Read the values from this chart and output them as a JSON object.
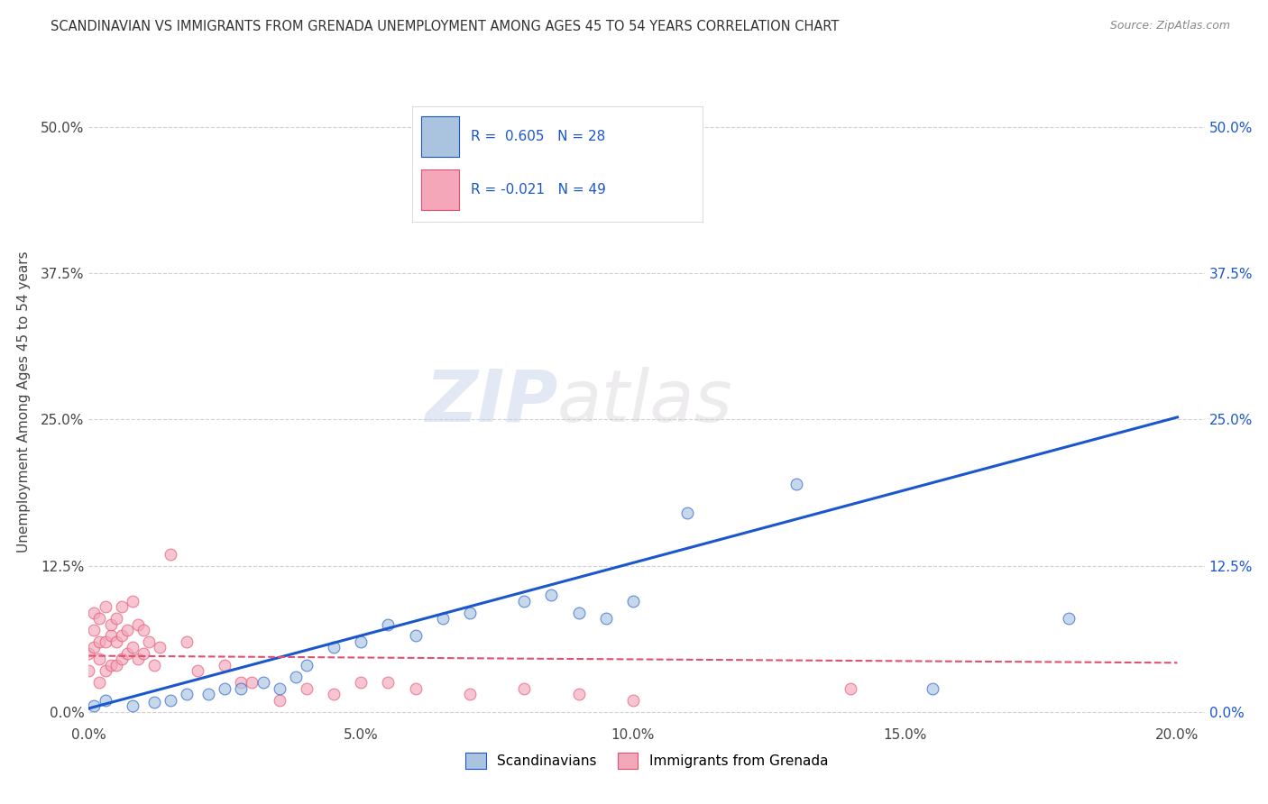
{
  "title": "SCANDINAVIAN VS IMMIGRANTS FROM GRENADA UNEMPLOYMENT AMONG AGES 45 TO 54 YEARS CORRELATION CHART",
  "source": "Source: ZipAtlas.com",
  "ylabel": "Unemployment Among Ages 45 to 54 years",
  "xlabel_ticks": [
    "0.0%",
    "5.0%",
    "10.0%",
    "15.0%",
    "20.0%"
  ],
  "xlabel_vals": [
    0.0,
    0.05,
    0.1,
    0.15,
    0.2
  ],
  "ylabel_ticks": [
    "0.0%",
    "12.5%",
    "25.0%",
    "37.5%",
    "50.0%"
  ],
  "ylabel_vals": [
    0.0,
    0.125,
    0.25,
    0.375,
    0.5
  ],
  "xlim": [
    0.0,
    0.205
  ],
  "ylim": [
    -0.01,
    0.54
  ],
  "scandinavian_color": "#aac4e0",
  "grenada_color": "#f4a7b9",
  "scatter_alpha": 0.65,
  "scatter_size": 85,
  "blue_line_color": "#1a56cc",
  "pink_line_color": "#e05070",
  "R_scand": 0.605,
  "N_scand": 28,
  "R_gren": -0.021,
  "N_gren": 49,
  "legend_label_scand": "Scandinavians",
  "legend_label_gren": "Immigrants from Grenada",
  "watermark_zip": "ZIP",
  "watermark_atlas": "atlas",
  "background_color": "#ffffff",
  "grid_color": "#cccccc",
  "scandinavian_x": [
    0.001,
    0.003,
    0.008,
    0.012,
    0.015,
    0.018,
    0.022,
    0.025,
    0.028,
    0.032,
    0.035,
    0.038,
    0.04,
    0.045,
    0.05,
    0.055,
    0.06,
    0.065,
    0.07,
    0.08,
    0.085,
    0.09,
    0.095,
    0.1,
    0.11,
    0.13,
    0.155,
    0.18
  ],
  "scandinavian_y": [
    0.005,
    0.01,
    0.005,
    0.008,
    0.01,
    0.015,
    0.015,
    0.02,
    0.02,
    0.025,
    0.02,
    0.03,
    0.04,
    0.055,
    0.06,
    0.075,
    0.065,
    0.08,
    0.085,
    0.095,
    0.1,
    0.085,
    0.08,
    0.095,
    0.17,
    0.195,
    0.02,
    0.08
  ],
  "grenada_x": [
    0.0,
    0.0,
    0.001,
    0.001,
    0.001,
    0.002,
    0.002,
    0.002,
    0.002,
    0.003,
    0.003,
    0.003,
    0.004,
    0.004,
    0.004,
    0.005,
    0.005,
    0.005,
    0.006,
    0.006,
    0.006,
    0.007,
    0.007,
    0.008,
    0.008,
    0.009,
    0.009,
    0.01,
    0.01,
    0.011,
    0.012,
    0.013,
    0.015,
    0.018,
    0.02,
    0.025,
    0.028,
    0.03,
    0.035,
    0.04,
    0.045,
    0.05,
    0.055,
    0.06,
    0.07,
    0.08,
    0.09,
    0.1,
    0.14
  ],
  "grenada_y": [
    0.035,
    0.05,
    0.055,
    0.07,
    0.085,
    0.025,
    0.045,
    0.06,
    0.08,
    0.035,
    0.06,
    0.09,
    0.04,
    0.065,
    0.075,
    0.04,
    0.06,
    0.08,
    0.045,
    0.065,
    0.09,
    0.05,
    0.07,
    0.055,
    0.095,
    0.045,
    0.075,
    0.05,
    0.07,
    0.06,
    0.04,
    0.055,
    0.135,
    0.06,
    0.035,
    0.04,
    0.025,
    0.025,
    0.01,
    0.02,
    0.015,
    0.025,
    0.025,
    0.02,
    0.015,
    0.02,
    0.015,
    0.01,
    0.02
  ],
  "blue_line_x": [
    0.0,
    0.2
  ],
  "blue_line_y": [
    0.003,
    0.252
  ],
  "pink_line_x": [
    0.0,
    0.2
  ],
  "pink_line_y": [
    0.048,
    0.042
  ]
}
